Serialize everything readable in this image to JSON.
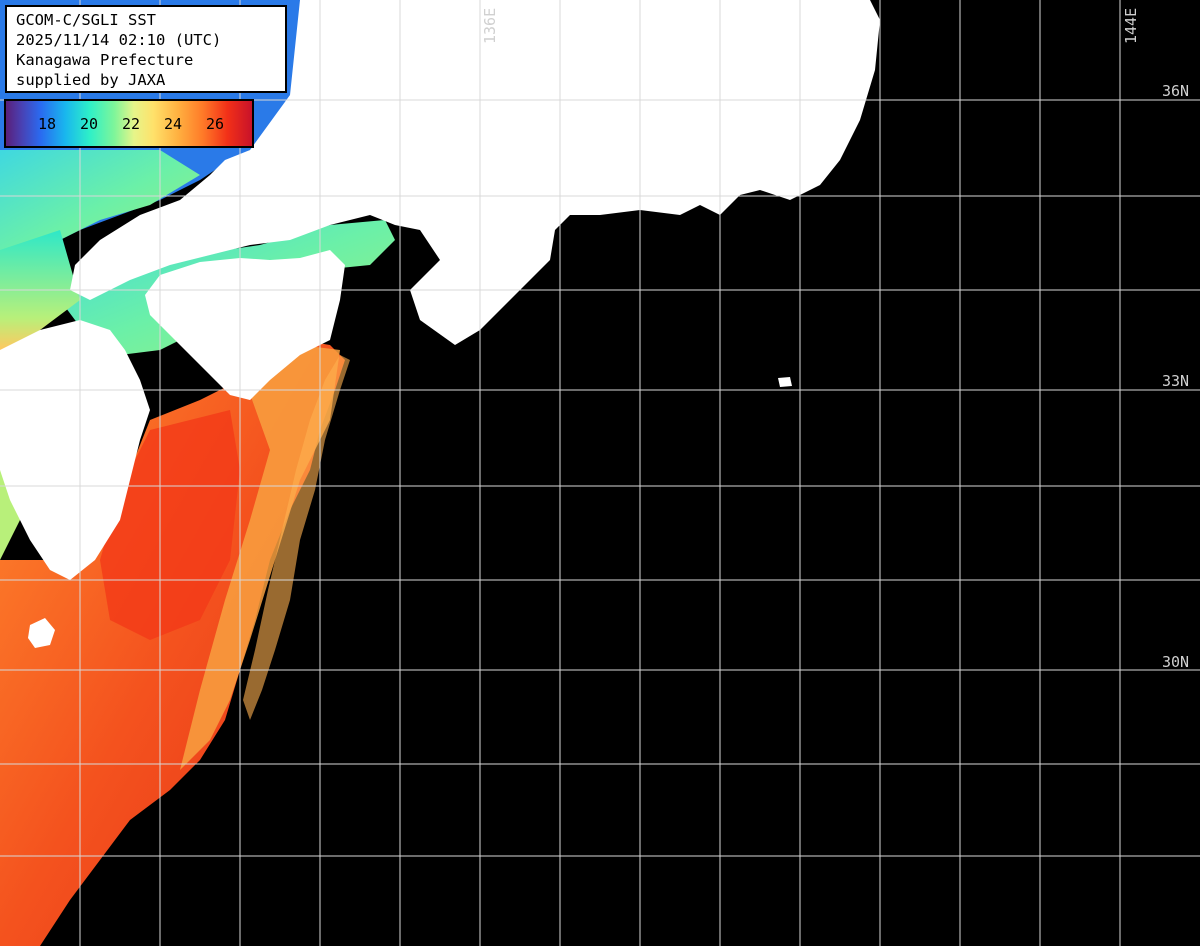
{
  "info": {
    "line1": "GCOM-C/SGLI SST",
    "line2": "2025/11/14 02:10 (UTC)",
    "line3": "Kanagawa Prefecture",
    "line4": "supplied by JAXA"
  },
  "legend": {
    "labels": [
      "18",
      "20",
      "22",
      "24",
      "26"
    ]
  },
  "grid": {
    "lon_labels": [
      "136E",
      "144E"
    ],
    "lat_labels": [
      "36N",
      "33N",
      "30N"
    ]
  },
  "colors": {
    "land": "#ffffff",
    "no_data": "#000000",
    "grid": "#d8d8d8",
    "warm_sst": "#f04a1c",
    "cool_sst": "#7ef59a"
  }
}
